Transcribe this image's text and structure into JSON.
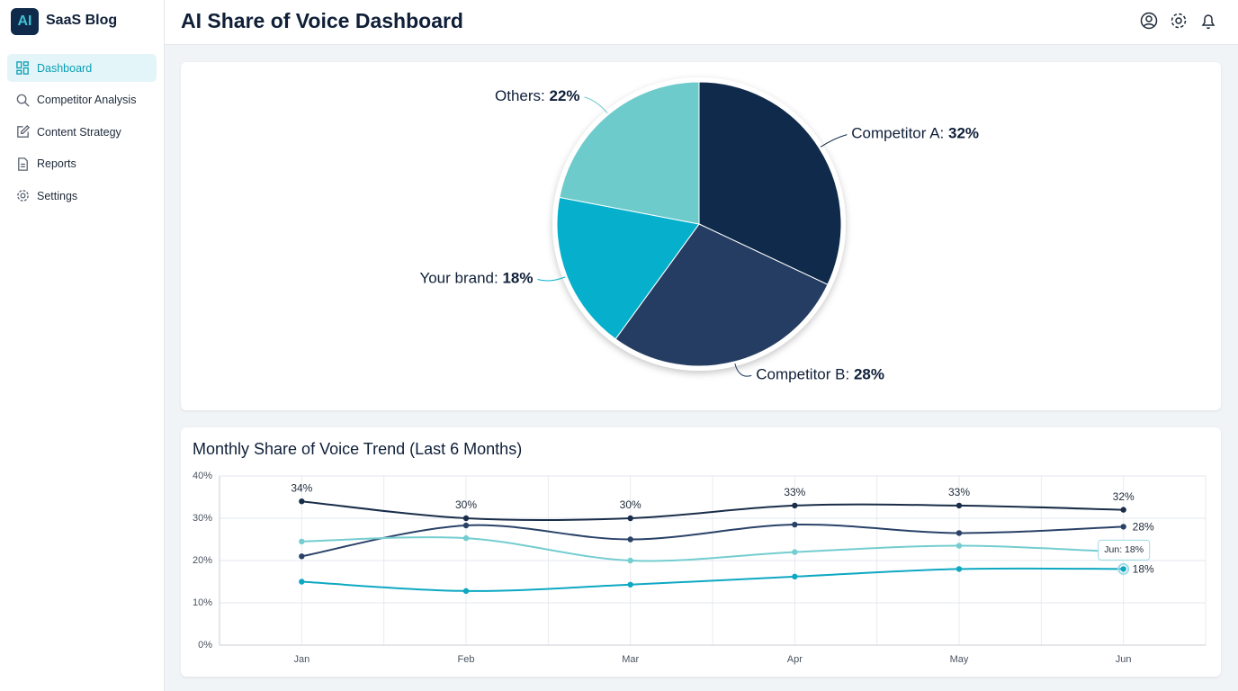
{
  "sidebar": {
    "logo": "AI",
    "brand": "SaaS Blog",
    "nav": [
      {
        "label": "Dashboard",
        "active": true
      },
      {
        "label": "Competitor Analysis",
        "active": false
      },
      {
        "label": "Content Strategy",
        "active": false
      },
      {
        "label": "Reports",
        "active": false
      },
      {
        "label": "Settings",
        "active": false
      }
    ]
  },
  "header": {
    "title": "AI Share of Voice Dashboard"
  },
  "chart_data": [
    {
      "type": "pie",
      "categories": [
        "Competitor A:",
        "Competitor B:",
        "Your brand:",
        "Others:"
      ],
      "values": [
        32,
        28,
        18,
        22
      ],
      "value_labels": [
        "32%",
        "28%",
        "18%",
        "22%"
      ],
      "colors": [
        "#0f2a4a",
        "#253d63",
        "#06b0cc",
        "#6ecbcc"
      ]
    },
    {
      "type": "line",
      "title": "Monthly Share of Voice Trend (Last 6 Months)",
      "categories": [
        "Jan",
        "Feb",
        "Mar",
        "Apr",
        "May",
        "Jun"
      ],
      "ylim": [
        0,
        40
      ],
      "yticks": [
        {
          "value": 0,
          "label": "0%"
        },
        {
          "value": 10,
          "label": "10%"
        },
        {
          "value": 20,
          "label": "20%"
        },
        {
          "value": 30,
          "label": "30%"
        },
        {
          "value": 40,
          "label": "40%"
        }
      ],
      "grid": true,
      "series": [
        {
          "color": "#1a2e4a",
          "values": [
            34,
            30,
            30,
            33,
            33,
            32
          ],
          "value_labels": [
            "34%",
            "30%",
            "30%",
            "33%",
            "33%",
            "32%"
          ]
        },
        {
          "color": "#2a4268",
          "values": [
            21,
            28.3,
            25,
            28.5,
            26.5,
            28
          ],
          "value_labels": [
            null,
            null,
            null,
            null,
            null,
            "28%"
          ]
        },
        {
          "color": "#74cdd0",
          "values": [
            24.5,
            25.3,
            20,
            22,
            23.5,
            22
          ]
        },
        {
          "color": "#0ea8c2",
          "values": [
            15,
            12.8,
            14.3,
            16.2,
            18,
            18
          ],
          "value_labels": [
            null,
            null,
            null,
            null,
            null,
            "18%"
          ]
        }
      ],
      "annotations": [
        {
          "text": "Jun: 18%"
        }
      ]
    }
  ]
}
